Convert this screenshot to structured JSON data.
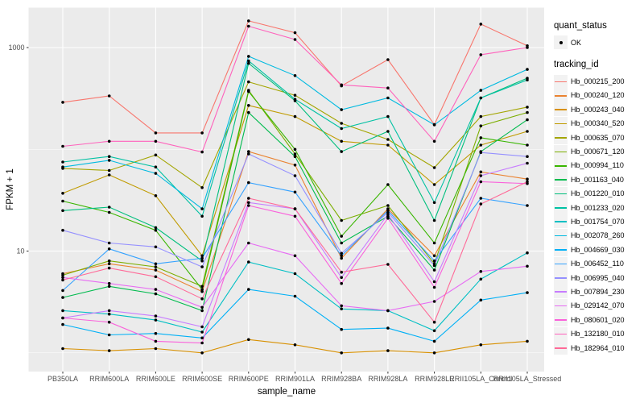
{
  "figure": {
    "x_axis_title": "sample_name",
    "y_axis_title": "FPKM + 1",
    "legend": {
      "quant_status_title": "quant_status",
      "quant_status_items": [
        {
          "label": "OK"
        }
      ],
      "tracking_title": "tracking_id"
    }
  },
  "chart_data": {
    "type": "line",
    "title": "",
    "xlabel": "sample_name",
    "ylabel": "FPKM + 1",
    "y_scale": "log10",
    "y_tick_values": [
      10,
      1000
    ],
    "y_tick_labels": [
      "10",
      "1000"
    ],
    "y_minor_gridlines": [
      1,
      100
    ],
    "ylim": [
      0.65,
      2450
    ],
    "grid": true,
    "panel_bg": "#EBEBEB",
    "grid_color": "#FFFFFF",
    "point_color": "#000000",
    "point_legend_label": "OK",
    "legend_position": "right",
    "categories": [
      "PB350LA",
      "RRIM600LA",
      "RRIM600LE",
      "RRIM600SE",
      "RRIM600PE",
      "RRIM901LA",
      "RRIM928BA",
      "RRIM928LA",
      "RRIM928LE",
      "RRII105LA_Control",
      "RRII105LA_Stressed"
    ],
    "series": [
      {
        "name": "Hb_000215_200",
        "color": "#F8766D",
        "values": [
          290,
          335,
          145,
          145,
          1830,
          1400,
          420,
          760,
          175,
          1700,
          1040
        ]
      },
      {
        "name": "Hb_000240_120",
        "color": "#EA8331",
        "values": [
          6.0,
          7.5,
          6.5,
          4.0,
          95,
          70,
          8.5,
          26,
          9.0,
          60,
          51
        ]
      },
      {
        "name": "Hb_000243_040",
        "color": "#D89000",
        "values": [
          1.1,
          1.05,
          1.1,
          1.0,
          1.35,
          1.2,
          1.0,
          1.05,
          1.0,
          1.2,
          1.3
        ]
      },
      {
        "name": "Hb_000340_520",
        "color": "#C09B00",
        "values": [
          37,
          56,
          35,
          9,
          270,
          210,
          120,
          110,
          45,
          110,
          150
        ]
      },
      {
        "name": "Hb_000635_070",
        "color": "#A3A500",
        "values": [
          65,
          62,
          88,
          42,
          460,
          340,
          180,
          125,
          66,
          210,
          260
        ]
      },
      {
        "name": "Hb_000671_120",
        "color": "#7CAE00",
        "values": [
          5.8,
          8.0,
          7.0,
          4.5,
          380,
          90,
          20,
          28,
          7.5,
          170,
          230
        ]
      },
      {
        "name": "Hb_000994_110",
        "color": "#39B600",
        "values": [
          31,
          24,
          16,
          4.2,
          370,
          100,
          14,
          45,
          12,
          130,
          110
        ]
      },
      {
        "name": "Hb_001163_040",
        "color": "#00BB4E",
        "values": [
          3.5,
          4.5,
          3.8,
          2.6,
          230,
          85,
          12,
          22,
          6.5,
          95,
          195
        ]
      },
      {
        "name": "Hb_001220_010",
        "color": "#00BF7D",
        "values": [
          25,
          27,
          17,
          8,
          700,
          300,
          95,
          150,
          20,
          320,
          500
        ]
      },
      {
        "name": "Hb_001233_020",
        "color": "#00C1A3",
        "values": [
          75,
          85,
          67,
          22,
          740,
          310,
          160,
          210,
          30,
          320,
          480
        ]
      },
      {
        "name": "Hb_001754_070",
        "color": "#00BFC4",
        "values": [
          2.6,
          2.4,
          2.1,
          1.6,
          7.8,
          6.0,
          2.7,
          2.6,
          1.65,
          5.3,
          9.6
        ]
      },
      {
        "name": "Hb_002078_260",
        "color": "#00BAE0",
        "values": [
          67,
          78,
          58,
          26,
          820,
          530,
          245,
          320,
          174,
          380,
          610
        ]
      },
      {
        "name": "Hb_004669_030",
        "color": "#00B0F6",
        "values": [
          1.9,
          1.5,
          1.55,
          1.4,
          4.2,
          3.6,
          1.7,
          1.75,
          1.3,
          3.3,
          3.9
        ]
      },
      {
        "name": "Hb_006452_110",
        "color": "#35A2FF",
        "values": [
          4.1,
          10.5,
          7.5,
          8.5,
          47,
          38,
          9.0,
          25,
          8.0,
          33,
          28
        ]
      },
      {
        "name": "Hb_006995_040",
        "color": "#9590FF",
        "values": [
          16,
          12,
          11,
          7,
          90,
          55,
          9.5,
          24,
          7.2,
          93,
          85
        ]
      },
      {
        "name": "Hb_007894_230",
        "color": "#C77CFF",
        "values": [
          2.2,
          2.6,
          2.3,
          1.8,
          30,
          26,
          5.5,
          23,
          5.0,
          55,
          73
        ]
      },
      {
        "name": "Hb_029142_070",
        "color": "#E76BF3",
        "values": [
          5.5,
          4.8,
          4.2,
          2.8,
          12,
          9.0,
          2.9,
          2.6,
          3.2,
          6.3,
          7.1
        ]
      },
      {
        "name": "Hb_080601_020",
        "color": "#FA62DB",
        "values": [
          2.2,
          2.0,
          1.3,
          1.25,
          28,
          22,
          4.8,
          21,
          4.4,
          48,
          46
        ]
      },
      {
        "name": "Hb_132180_010",
        "color": "#FF62BC",
        "values": [
          107,
          120,
          120,
          94,
          1620,
          1200,
          430,
          400,
          120,
          850,
          1000
        ]
      },
      {
        "name": "Hb_182964_010",
        "color": "#FF6A98",
        "values": [
          5.2,
          6.8,
          5.6,
          3.4,
          33,
          26,
          6.2,
          7.4,
          2.0,
          29,
          48
        ]
      }
    ]
  }
}
